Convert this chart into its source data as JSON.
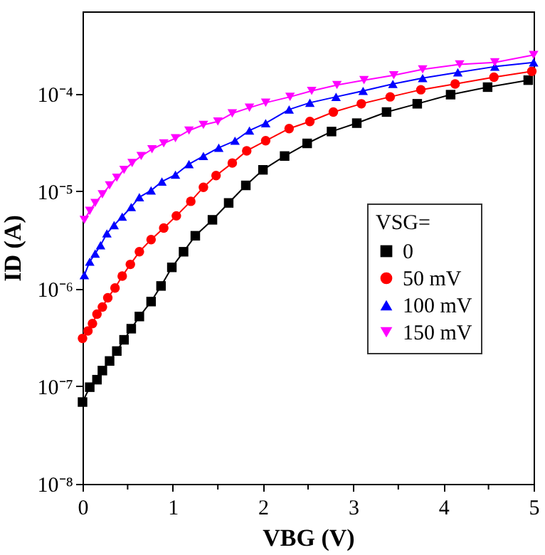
{
  "chart_data": {
    "type": "line",
    "xlabel": "VBG (V)",
    "ylabel": "ID (A)",
    "legend_title": "VSG=",
    "legend": "right",
    "log": "y",
    "grid": false,
    "xlim": [
      0,
      5
    ],
    "xticks": [
      0,
      {
        "value": 0.5,
        "label": null
      },
      1,
      {
        "value": 1.5,
        "label": null
      },
      2,
      {
        "value": 2.5,
        "label": null
      },
      3,
      {
        "value": 3.5,
        "label": null
      },
      4,
      {
        "value": 4.5,
        "label": null
      },
      5
    ],
    "ylim": [
      1e-08,
      0.0007
    ],
    "yticks": [
      {
        "value": 1e-08,
        "label": "10⁻⁸"
      },
      {
        "value": 1e-07,
        "label": "10⁻⁷"
      },
      {
        "value": 1e-06,
        "label": "10⁻⁶"
      },
      {
        "value": 1e-05,
        "label": "10⁻⁵"
      },
      {
        "value": 0.0001,
        "label": "10⁻⁴"
      }
    ],
    "series": [
      {
        "name": "0",
        "color": "#000000",
        "marker": "square",
        "line_style": "solid",
        "x": [
          0,
          0.08,
          0.16,
          0.22,
          0.3,
          0.38,
          0.46,
          0.54,
          0.63,
          0.76,
          0.87,
          0.99,
          1.12,
          1.25,
          1.44,
          1.62,
          1.81,
          2.0,
          2.24,
          2.49,
          2.76,
          3.04,
          3.37,
          3.71,
          4.08,
          4.49,
          4.94
        ],
        "values": [
          6.9e-08,
          9.8e-08,
          1.17e-07,
          1.45e-07,
          1.82e-07,
          2.3e-07,
          3e-07,
          3.9e-07,
          5.2e-07,
          7.4e-07,
          1.07e-06,
          1.66e-06,
          2.4e-06,
          3.5e-06,
          5.1e-06,
          7.6e-06,
          1.15e-05,
          1.66e-05,
          2.3e-05,
          3.1e-05,
          4.1e-05,
          5e-05,
          6.5e-05,
          7.9e-05,
          9.8e-05,
          0.000117,
          0.000138
        ]
      },
      {
        "name": "50 mV",
        "color": "#ff0000",
        "marker": "circle",
        "line_style": "solid",
        "x": [
          0,
          0.06,
          0.11,
          0.16,
          0.22,
          0.28,
          0.36,
          0.44,
          0.53,
          0.63,
          0.76,
          0.9,
          1.04,
          1.2,
          1.34,
          1.48,
          1.66,
          1.82,
          2.03,
          2.29,
          2.52,
          2.78,
          3.09,
          3.41,
          3.75,
          4.13,
          4.56,
          4.98
        ],
        "values": [
          3.1e-07,
          3.7e-07,
          4.4e-07,
          5.5e-07,
          6.5e-07,
          8.1e-07,
          1.02e-06,
          1.35e-06,
          1.78e-06,
          2.4e-06,
          3.2e-06,
          4.2e-06,
          5.6e-06,
          7.9e-06,
          1.1e-05,
          1.45e-05,
          1.95e-05,
          2.6e-05,
          3.3e-05,
          4.4e-05,
          5.2e-05,
          6.5e-05,
          7.9e-05,
          9.3e-05,
          0.00011,
          0.000126,
          0.000148,
          0.00017
        ]
      },
      {
        "name": "100 mV",
        "color": "#0000ff",
        "marker": "triangle",
        "line_style": "solid",
        "x": [
          0.02,
          0.08,
          0.14,
          0.2,
          0.27,
          0.35,
          0.44,
          0.54,
          0.63,
          0.76,
          0.88,
          1.03,
          1.18,
          1.34,
          1.51,
          1.69,
          1.85,
          2.03,
          2.29,
          2.52,
          2.81,
          3.11,
          3.44,
          3.77,
          4.16,
          4.57,
          5.0
        ],
        "values": [
          1.38e-06,
          1.9e-06,
          2.3e-06,
          2.8e-06,
          3.7e-06,
          4.5e-06,
          5.5e-06,
          6.9e-06,
          8.7e-06,
          1.02e-05,
          1.26e-05,
          1.48e-05,
          1.9e-05,
          2.3e-05,
          2.8e-05,
          3.3e-05,
          4.2e-05,
          5e-05,
          6.9e-05,
          8.1e-05,
          9.3e-05,
          0.000107,
          0.000126,
          0.000145,
          0.000166,
          0.00019,
          0.00021
        ]
      },
      {
        "name": "150 mV",
        "color": "#ff00ff",
        "marker": "triangle-down",
        "line_style": "solid",
        "x": [
          0.02,
          0.08,
          0.14,
          0.22,
          0.3,
          0.38,
          0.46,
          0.55,
          0.65,
          0.77,
          0.9,
          1.03,
          1.18,
          1.34,
          1.5,
          1.66,
          1.85,
          2.03,
          2.3,
          2.54,
          2.82,
          3.12,
          3.45,
          3.77,
          4.18,
          4.57,
          5.0
        ],
        "values": [
          5.1e-06,
          6.3e-06,
          7.6e-06,
          9.3e-06,
          1.15e-05,
          1.38e-05,
          1.66e-05,
          1.95e-05,
          2.3e-05,
          2.7e-05,
          3.1e-05,
          3.5e-05,
          4.2e-05,
          4.8e-05,
          5.2e-05,
          6.3e-05,
          7.2e-05,
          8.1e-05,
          9.3e-05,
          0.000107,
          0.000123,
          0.000138,
          0.000155,
          0.000178,
          0.0002,
          0.00021,
          0.00025
        ]
      }
    ]
  }
}
